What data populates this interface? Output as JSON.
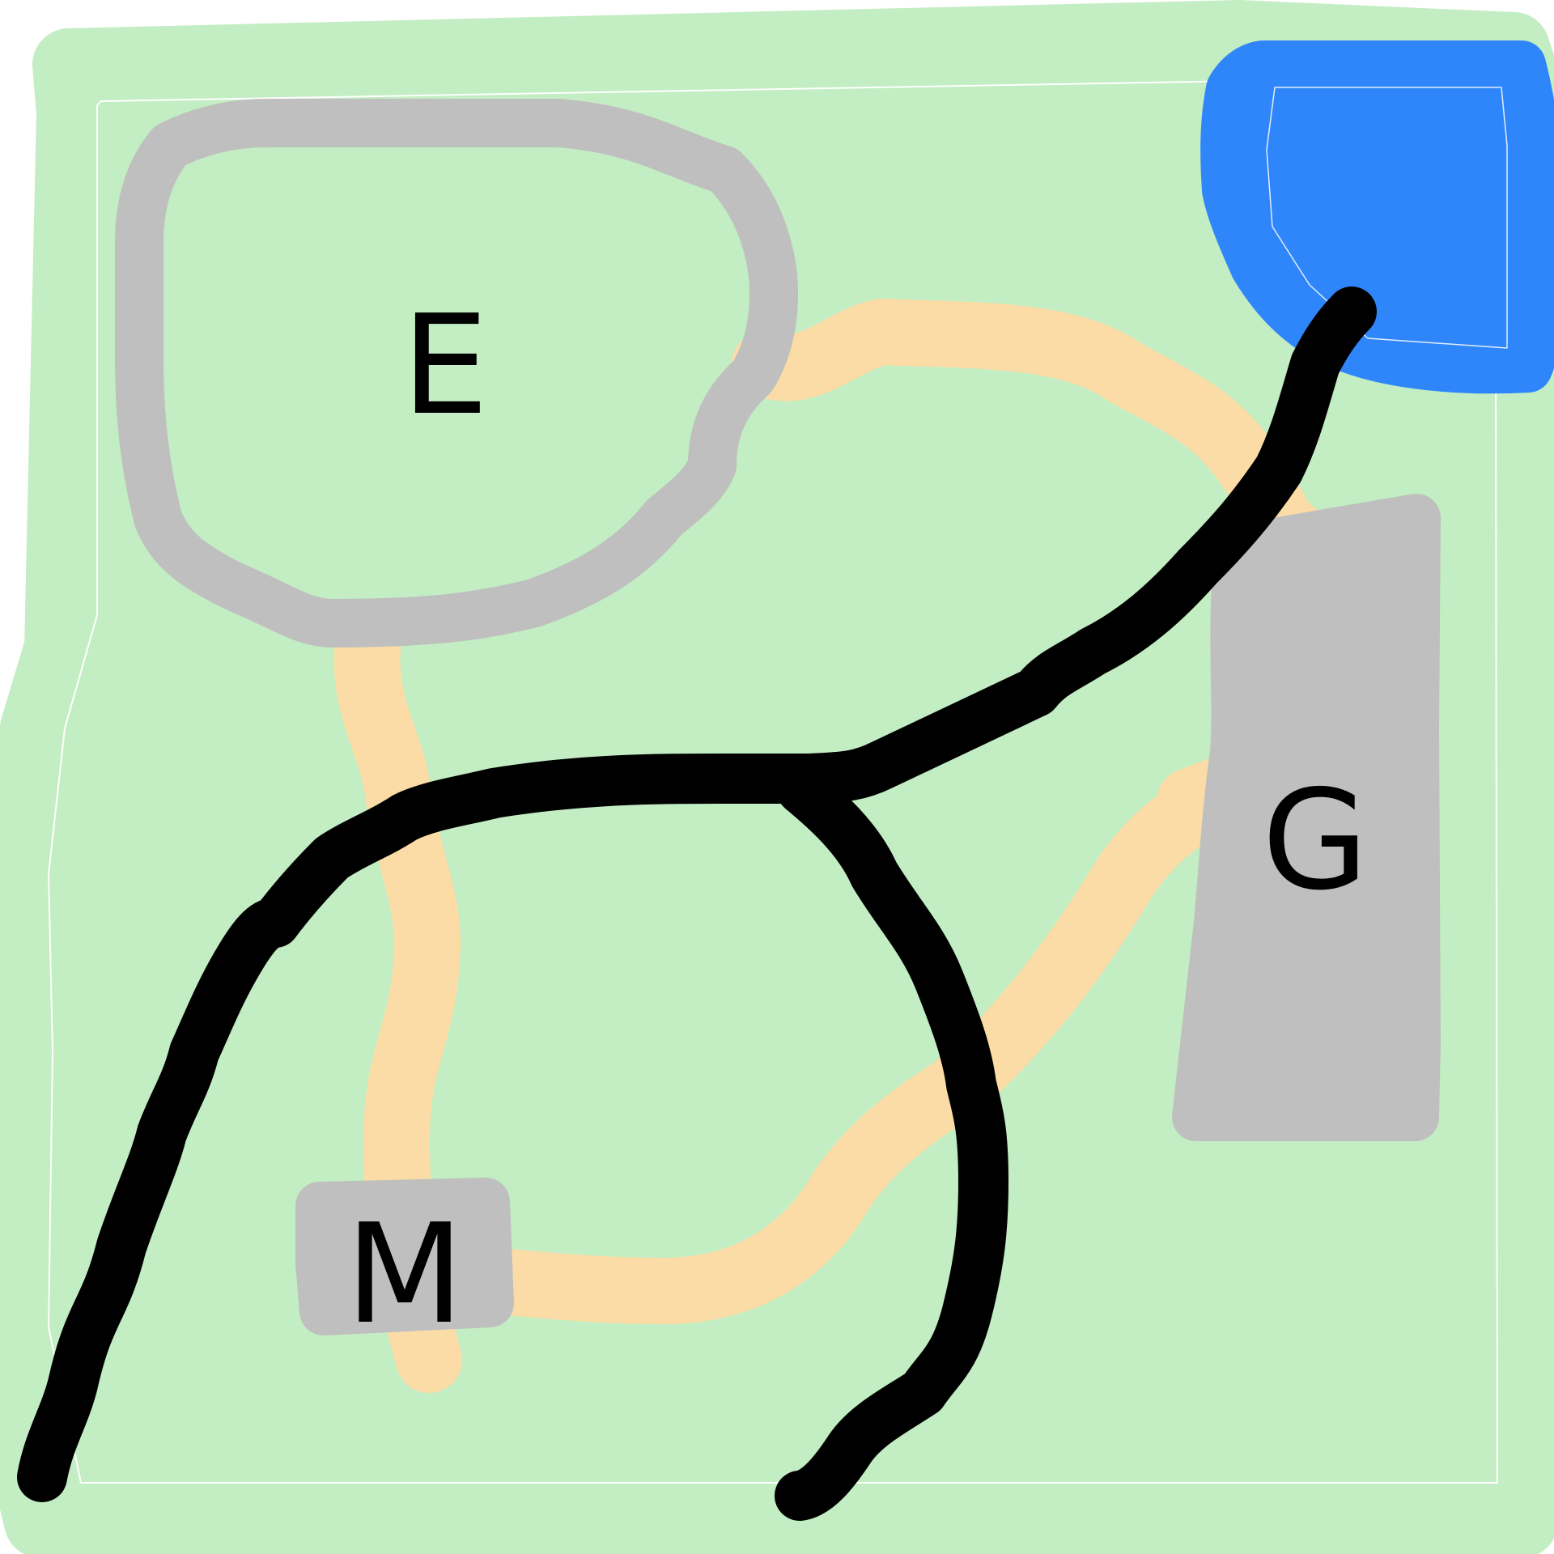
{
  "map": {
    "labels": {
      "E": "E",
      "G": "G",
      "M": "M"
    },
    "colors": {
      "land": "#c3edc2",
      "land_outline": "#ffffff",
      "path": "#fcdca6",
      "building": "#bfbfbf",
      "water": "#2f86fb",
      "road": "#000000",
      "label": "#000000"
    }
  }
}
